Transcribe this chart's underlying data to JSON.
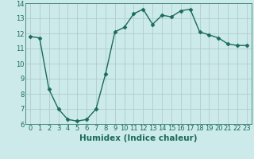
{
  "x": [
    0,
    1,
    2,
    3,
    4,
    5,
    6,
    7,
    8,
    9,
    10,
    11,
    12,
    13,
    14,
    15,
    16,
    17,
    18,
    19,
    20,
    21,
    22,
    23
  ],
  "y": [
    11.8,
    11.7,
    8.3,
    7.0,
    6.3,
    6.2,
    6.3,
    7.0,
    9.3,
    12.1,
    12.4,
    13.3,
    13.6,
    12.6,
    13.2,
    13.1,
    13.5,
    13.6,
    12.1,
    11.9,
    11.7,
    11.3,
    11.2,
    11.2
  ],
  "line_color": "#1a6b5a",
  "marker": "D",
  "marker_size": 2.5,
  "bg_color": "#cdeaea",
  "grid_color": "#b0cccc",
  "xlabel": "Humidex (Indice chaleur)",
  "ylim": [
    6,
    14
  ],
  "xlim_min": -0.5,
  "xlim_max": 23.5,
  "yticks": [
    6,
    7,
    8,
    9,
    10,
    11,
    12,
    13,
    14
  ],
  "xticks": [
    0,
    1,
    2,
    3,
    4,
    5,
    6,
    7,
    8,
    9,
    10,
    11,
    12,
    13,
    14,
    15,
    16,
    17,
    18,
    19,
    20,
    21,
    22,
    23
  ],
  "tick_fontsize": 6,
  "xlabel_fontsize": 7.5,
  "line_width": 1.0
}
